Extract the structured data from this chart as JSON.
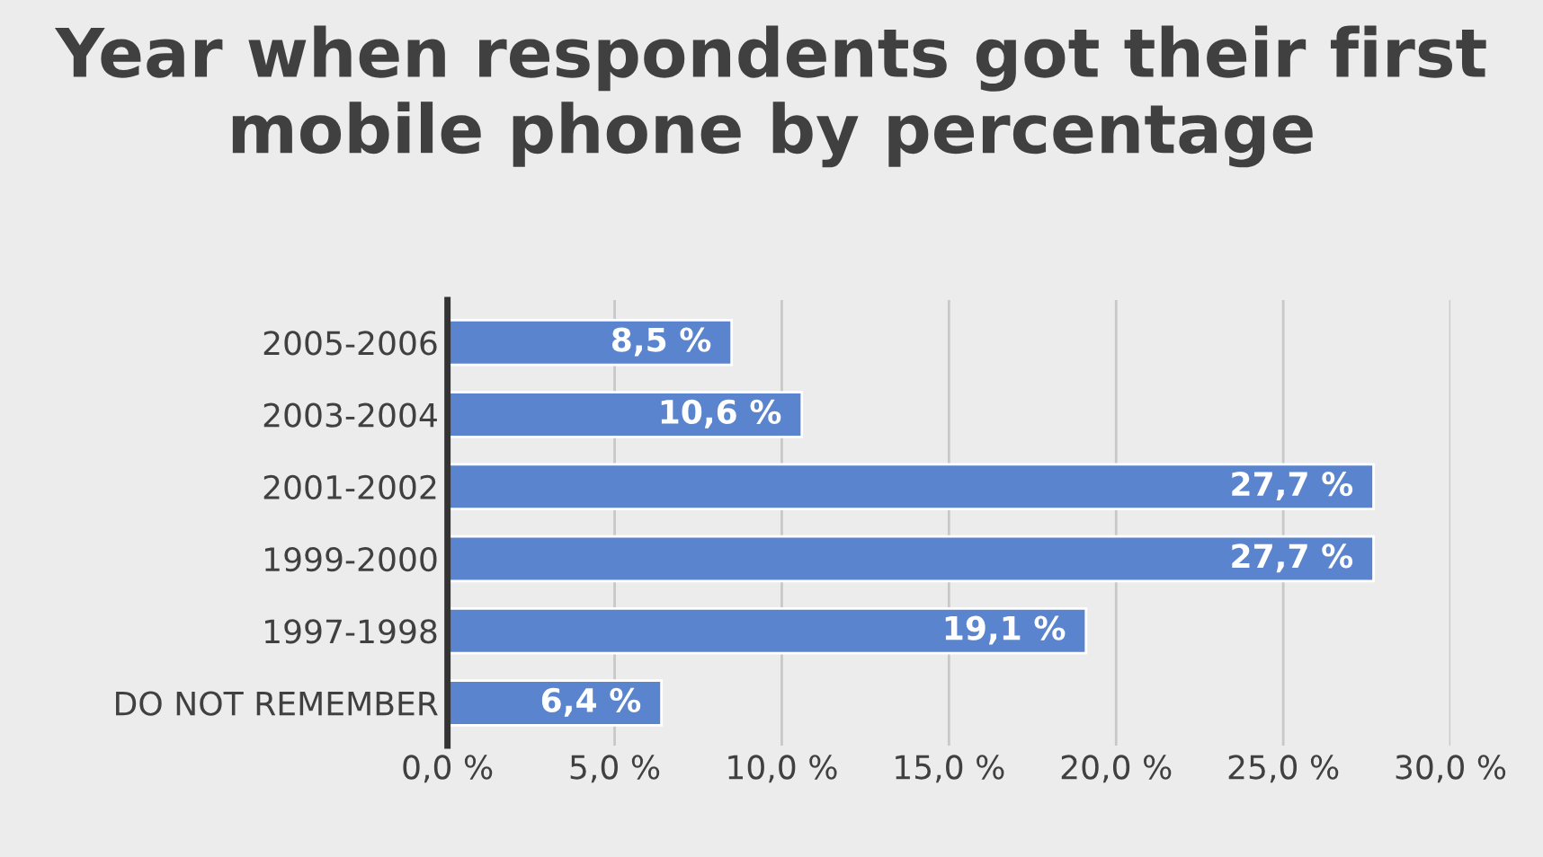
{
  "chart_data": {
    "type": "bar",
    "orientation": "horizontal",
    "title": "Year when respondents got their first mobile phone by percentage",
    "categories": [
      "2005-2006",
      "2003-2004",
      "2001-2002",
      "1999-2000",
      "1997-1998",
      "DO NOT REMEMBER"
    ],
    "values": [
      8.5,
      10.6,
      27.7,
      27.7,
      19.1,
      6.4
    ],
    "value_labels": [
      "8,5 %",
      "10,6 %",
      "27,7 %",
      "27,7 %",
      "19,1 %",
      "6,4 %"
    ],
    "color": "#5b84cf",
    "xlim": [
      0,
      30
    ],
    "xticks": [
      {
        "value": 0,
        "label": "0,0 %"
      },
      {
        "value": 5,
        "label": "5,0 %"
      },
      {
        "value": 10,
        "label": "10,0 %"
      },
      {
        "value": 15,
        "label": "15,0 %"
      },
      {
        "value": 20,
        "label": "20,0 %"
      },
      {
        "value": 25,
        "label": "25,0 %"
      },
      {
        "value": 30,
        "label": "30,0 %"
      }
    ],
    "grid": "x",
    "legend": false
  }
}
